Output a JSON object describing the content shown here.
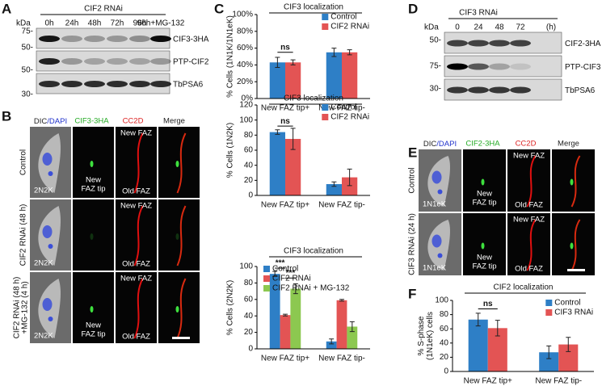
{
  "chart_data": [
    {
      "type": "bar",
      "title": "CIF3 localization",
      "ylabel": [
        "% Cells (1N1K/1N1eK)"
      ],
      "categories": [
        "New FAZ tip+",
        "New FAZ tip-"
      ],
      "series": [
        {
          "name": "Control",
          "color": "#2e7fc6",
          "values": [
            43,
            55
          ],
          "errors": [
            6,
            5
          ]
        },
        {
          "name": "CIF2 RNAi",
          "color": "#e35454",
          "values": [
            43,
            55
          ],
          "errors": [
            3,
            3
          ]
        }
      ],
      "ylim": [
        0,
        100
      ],
      "yticks": [
        {
          "value": 0,
          "label": "0%"
        },
        {
          "value": 20,
          "label": "20%"
        },
        {
          "value": 40,
          "label": "40%"
        },
        {
          "value": 60,
          "label": "60%"
        },
        {
          "value": 80,
          "label": "80%"
        },
        {
          "value": 100,
          "label": "100%"
        }
      ],
      "legend": "upper right",
      "annotations": [
        "ns"
      ]
    },
    {
      "type": "bar",
      "title": "CIF3 localization",
      "ylabel": [
        "% Cells (1N2K)"
      ],
      "categories": [
        "New FAZ tip+",
        "New FAZ tip-"
      ],
      "series": [
        {
          "name": "Control",
          "color": "#2e7fc6",
          "values": [
            84,
            15
          ],
          "errors": [
            3,
            3
          ]
        },
        {
          "name": "CIF2 RNAi",
          "color": "#e35454",
          "values": [
            75,
            24
          ],
          "errors": [
            14,
            11
          ]
        }
      ],
      "ylim": [
        0,
        120
      ],
      "yticks": [
        0,
        20,
        40,
        60,
        80,
        100,
        120
      ],
      "legend": "upper right",
      "annotations": [
        "ns"
      ]
    },
    {
      "type": "bar",
      "title": "CIF3 localization",
      "ylabel": [
        "% Cells (2N2K)"
      ],
      "categories": [
        "New FAZ tip+",
        "New FAZ tip-"
      ],
      "series": [
        {
          "name": "Control",
          "color": "#2e7fc6",
          "values": [
            91,
            9
          ],
          "errors": [
            3,
            3
          ]
        },
        {
          "name": "CIF2 RNAi",
          "color": "#e35454",
          "values": [
            41,
            59
          ],
          "errors": [
            1,
            1
          ]
        },
        {
          "name": "CIF2 RNAi + MG-132",
          "color": "#8cc850",
          "values": [
            73,
            27
          ],
          "errors": [
            6,
            6
          ]
        }
      ],
      "ylim": [
        0,
        100
      ],
      "yticks": [
        0,
        20,
        40,
        60,
        80,
        100
      ],
      "legend": "upper left",
      "annotations": [
        "***",
        "***"
      ]
    },
    {
      "type": "bar",
      "title": "CIF2 localization",
      "ylabel": [
        "% S-phase",
        "(1N1eK) cells"
      ],
      "categories": [
        "New FAZ tip+",
        "New FAZ tip-"
      ],
      "series": [
        {
          "name": "Control",
          "color": "#2e7fc6",
          "values": [
            73,
            27
          ],
          "errors": [
            9,
            9
          ]
        },
        {
          "name": "CIF3 RNAi",
          "color": "#e35454",
          "values": [
            61,
            38
          ],
          "errors": [
            11,
            10
          ]
        }
      ],
      "ylim": [
        0,
        100
      ],
      "yticks": [
        0,
        20,
        40,
        60,
        80,
        100
      ],
      "legend": "upper right",
      "annotations": [
        "ns"
      ]
    }
  ],
  "panels": {
    "letters": [
      "A",
      "B",
      "C",
      "D",
      "E",
      "F"
    ],
    "a": {
      "title": "CIF2 RNAi",
      "kda": "kDa",
      "markers": [
        "75-",
        "50-",
        "50-",
        "30-"
      ],
      "lanes": [
        "0h",
        "24h",
        "48h",
        "72h",
        "96h",
        "96h+MG-132"
      ],
      "rows": [
        "CIF3-3HA",
        "PTP-CIF2",
        "TbPSA6"
      ]
    },
    "d": {
      "title": "CIF3 RNAi",
      "kda": "kDa",
      "markers": [
        "50-",
        "75-",
        "30-"
      ],
      "lanes": [
        "0",
        "24",
        "48",
        "72",
        "(h)"
      ],
      "rows": [
        "CIF2-3HA",
        "PTP-CIF3",
        "TbPSA6"
      ]
    },
    "b": {
      "headers": [
        "DIC",
        "/DAPI",
        "CIF3-3HA",
        "CC2D",
        "Merge"
      ],
      "rows": [
        "Control",
        "CIF2 RNAi (48 h)",
        "CIF2 RNAi (48 h)",
        "+MG-132 (4 h)"
      ],
      "stage": "2N2K",
      "new_tip": [
        "New",
        "FAZ tip"
      ],
      "new_faz": "New FAZ",
      "old_faz": "Old FAZ"
    },
    "e": {
      "headers": [
        "DIC",
        "/DAPI",
        "CIF2-3HA",
        "CC2D",
        "Merge"
      ],
      "rows": [
        "Control",
        "CIF3 RNAi (24 h)"
      ],
      "stage": "1N1eK",
      "new_tip": [
        "New",
        "FAZ tip"
      ],
      "new_faz": "New FAZ",
      "old_faz": "Old FAZ"
    }
  }
}
